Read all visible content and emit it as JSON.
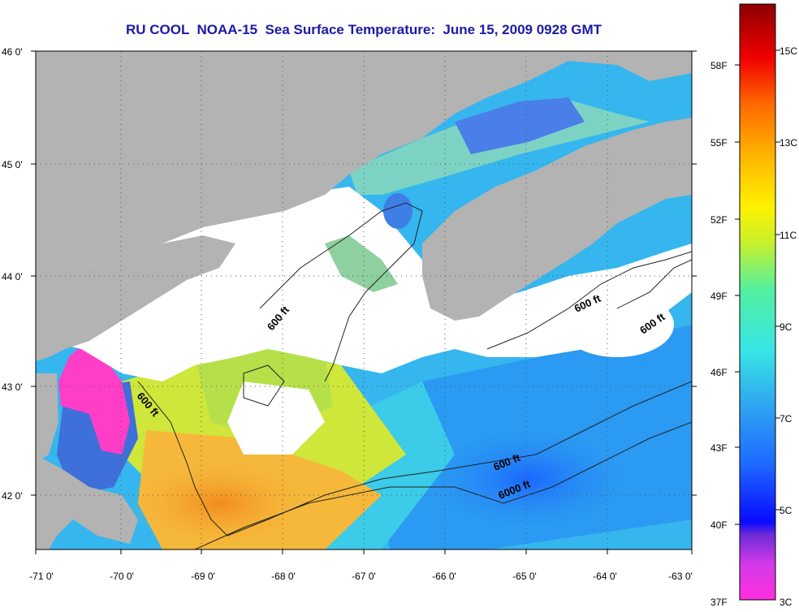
{
  "title": "RU COOL  NOAA-15  Sea Surface Temperature:  June 15, 2009 0928 GMT",
  "axes": {
    "lon_ticks": [
      "-71 0'",
      "-70 0'",
      "-69 0'",
      "-68 0'",
      "-67 0'",
      "-66 0'",
      "-65 0'",
      "-64 0'",
      "-63 0'"
    ],
    "lat_ticks": [
      "46 0'",
      "45 0'",
      "44 0'",
      "43 0'",
      "42 0'"
    ]
  },
  "contours": {
    "labels": [
      "600 ft",
      "600 ft",
      "600 ft",
      "600 ft",
      "6000 ft",
      "600 ft"
    ]
  },
  "colorbar": {
    "fahrenheit": [
      "58F",
      "55F",
      "52F",
      "49F",
      "46F",
      "43F",
      "40F",
      "37F"
    ],
    "celsius": [
      "15C",
      "13C",
      "11C",
      "9C",
      "7C",
      "5C",
      "3C"
    ],
    "range_c": [
      3,
      16
    ]
  },
  "colors": {
    "land": "#b3b3b3",
    "cloud": "#ffffff",
    "title": "#1a1aa6",
    "warm": "#f5a623",
    "cool": "#2fa8f0"
  }
}
